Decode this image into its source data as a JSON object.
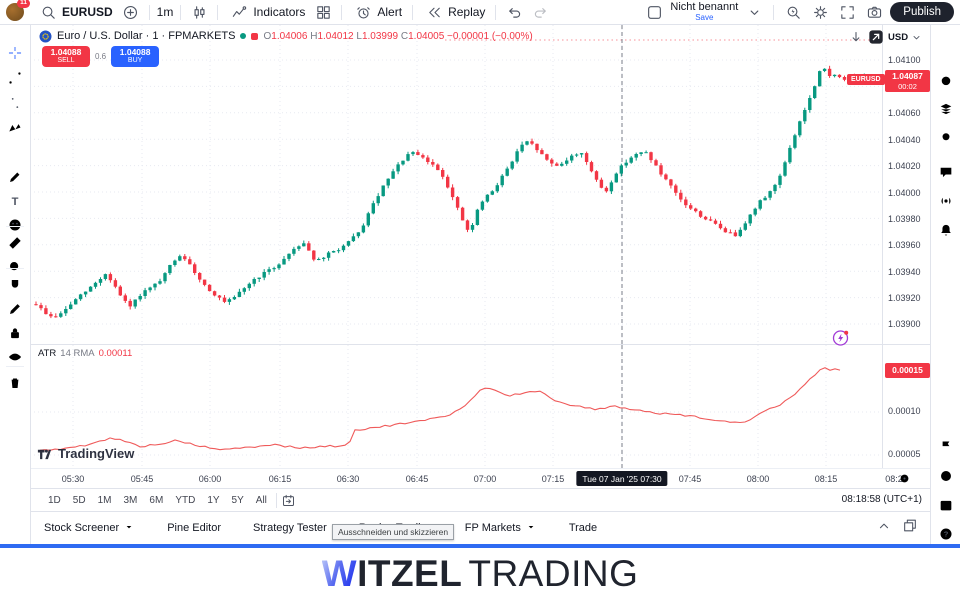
{
  "colors": {
    "up": "#089981",
    "down": "#f23645",
    "accent": "#2962ff",
    "sell": "#f23645",
    "buy": "#2962ff",
    "grid": "#e7eaf1",
    "crosshair": "#7a7e8a",
    "atr_line": "#ef5a5a",
    "badge_dark": "#131722",
    "blue_bar": "#2e6bf2"
  },
  "top_toolbar": {
    "badge": "11",
    "symbol": "EURUSD",
    "interval": "1m",
    "indicators": "Indicators",
    "alert": "Alert",
    "replay": "Replay",
    "layout_name": "Nicht benannt",
    "save": "Save",
    "publish": "Publish",
    "left_icons": [
      "search-icon",
      "plus-circle-icon",
      "candles-icon",
      "indicators-icon",
      "grid-icon",
      "alarm-icon",
      "replay-icon",
      "undo-icon",
      "redo-icon"
    ],
    "right_icons": [
      "layout-box-icon",
      "chevron-down-icon",
      "quick-search-icon",
      "gear-icon",
      "fullscreen-icon",
      "camera-icon"
    ]
  },
  "left_toolbar": {
    "tools": [
      "crosshair-icon",
      "trendline-icon",
      "fib-icon",
      "pattern-icon",
      "forecast-icon",
      "brush-icon",
      "text-icon",
      "emoji-icon",
      "ruler-icon",
      "zoom-in-icon",
      "magnet-icon",
      "pencil-icon",
      "lock-icon",
      "eye-icon",
      "trash-icon"
    ]
  },
  "right_sidebar": {
    "top": [
      "hamburger-icon",
      "alarm-clock-icon",
      "layers-icon",
      "lightbulb-icon",
      "chat-icon",
      "broadcast-icon",
      "bell-icon"
    ],
    "bottom": [
      "flag-icon",
      "target-icon",
      "calendar-icon",
      "help-icon"
    ]
  },
  "legend": {
    "title": "Euro / U.S. Dollar · 1 · FPMARKETS",
    "o_label": "O",
    "o": "1.04006",
    "h_label": "H",
    "h": "1.04012",
    "l_label": "L",
    "l": "1.03999",
    "c_label": "C",
    "c": "1.04005",
    "change": "−0.00001 (−0.00%)"
  },
  "trade": {
    "sell_price": "1.04088",
    "sell_label": "SELL",
    "spread": "0.6",
    "buy_price": "1.04088",
    "buy_label": "BUY"
  },
  "price_axis": {
    "currency": "USD",
    "labels": [
      "1.04100",
      "1.04060",
      "1.04040",
      "1.04020",
      "1.04000",
      "1.03980",
      "1.03960",
      "1.03940",
      "1.03920",
      "1.03900"
    ],
    "last": "1.04087",
    "countdown": "00:02",
    "tag": "EURUSD"
  },
  "atr_pane": {
    "name": "ATR",
    "params": "14 RMA",
    "value": "0.00011",
    "badge": "0.00015",
    "labels": [
      "0.00010",
      "0.00005"
    ]
  },
  "time_axis": {
    "labels": [
      "05:30",
      "05:45",
      "06:00",
      "06:15",
      "06:30",
      "06:45",
      "07:00",
      "07:15",
      "07:45",
      "08:00",
      "08:15",
      "08:2"
    ],
    "selected": "Tue 07 Jan '25   07:30"
  },
  "range_row": {
    "ranges": [
      "1D",
      "5D",
      "1M",
      "3M",
      "6M",
      "YTD",
      "1Y",
      "5Y",
      "All"
    ],
    "clock": "08:18:58 (UTC+1)"
  },
  "tabs": {
    "items": [
      "Stock Screener",
      "Pine Editor",
      "Strategy Tester",
      "Replay Trading",
      "FP Markets",
      "Trade"
    ],
    "tooltip": "Ausschneiden und skizzieren"
  },
  "watermark": "TradingView",
  "footer": {
    "w": "W",
    "itzel": "ITZEL",
    "trading": "TRADING"
  },
  "chart_data": {
    "type": "candlestick",
    "symbol": "EURUSD",
    "interval": "1m",
    "title": "Euro / U.S. Dollar · 1 · FPMARKETS",
    "ohlc_at_cursor": {
      "open": 1.04006,
      "high": 1.04012,
      "low": 1.03999,
      "close": 1.04005,
      "change": -1e-05,
      "change_pct": -0.0
    },
    "last_price": 1.04087,
    "ylim": [
      1.0389,
      1.04115
    ],
    "grid_prices": [
      1.041,
      1.0408,
      1.0406,
      1.0404,
      1.0402,
      1.04,
      1.0398,
      1.0396,
      1.0394,
      1.0392,
      1.039
    ],
    "time_gridlines": [
      "05:30",
      "05:45",
      "06:00",
      "06:15",
      "06:30",
      "06:45",
      "07:00",
      "07:15",
      "07:30",
      "07:45",
      "08:00",
      "08:15"
    ],
    "cursor_time": "Tue 07 Jan '25 07:30",
    "close_path": [
      [
        36,
        1.03915
      ],
      [
        44,
        1.03909
      ],
      [
        52,
        1.03905
      ],
      [
        60,
        1.03907
      ],
      [
        68,
        1.03913
      ],
      [
        78,
        1.0392
      ],
      [
        88,
        1.03926
      ],
      [
        98,
        1.03933
      ],
      [
        106,
        1.03938
      ],
      [
        114,
        1.0393
      ],
      [
        122,
        1.03919
      ],
      [
        130,
        1.03913
      ],
      [
        140,
        1.03922
      ],
      [
        150,
        1.03927
      ],
      [
        160,
        1.03932
      ],
      [
        170,
        1.03944
      ],
      [
        180,
        1.03952
      ],
      [
        188,
        1.03946
      ],
      [
        196,
        1.03938
      ],
      [
        205,
        1.03929
      ],
      [
        215,
        1.03922
      ],
      [
        225,
        1.03916
      ],
      [
        235,
        1.0392
      ],
      [
        245,
        1.03928
      ],
      [
        255,
        1.03934
      ],
      [
        265,
        1.03939
      ],
      [
        275,
        1.03943
      ],
      [
        285,
        1.0395
      ],
      [
        295,
        1.03958
      ],
      [
        305,
        1.03962
      ],
      [
        312,
        1.0395
      ],
      [
        320,
        1.03948
      ],
      [
        330,
        1.03954
      ],
      [
        340,
        1.03957
      ],
      [
        350,
        1.03963
      ],
      [
        360,
        1.0397
      ],
      [
        370,
        1.03986
      ],
      [
        380,
        1.04
      ],
      [
        390,
        1.04012
      ],
      [
        400,
        1.04022
      ],
      [
        410,
        1.0403
      ],
      [
        420,
        1.04027
      ],
      [
        430,
        1.04022
      ],
      [
        440,
        1.04016
      ],
      [
        448,
        1.04004
      ],
      [
        456,
        1.0399
      ],
      [
        464,
        1.03976
      ],
      [
        470,
        1.03968
      ],
      [
        478,
        1.03988
      ],
      [
        486,
        1.03996
      ],
      [
        494,
        1.04002
      ],
      [
        502,
        1.04012
      ],
      [
        510,
        1.0402
      ],
      [
        518,
        1.04032
      ],
      [
        526,
        1.04038
      ],
      [
        534,
        1.04035
      ],
      [
        542,
        1.04028
      ],
      [
        550,
        1.04022
      ],
      [
        558,
        1.0402
      ],
      [
        566,
        1.04024
      ],
      [
        574,
        1.04028
      ],
      [
        582,
        1.0403
      ],
      [
        590,
        1.04018
      ],
      [
        598,
        1.04006
      ],
      [
        606,
        1.04
      ],
      [
        614,
        1.04012
      ],
      [
        622,
        1.0402
      ],
      [
        630,
        1.04026
      ],
      [
        638,
        1.04029
      ],
      [
        646,
        1.0403
      ],
      [
        654,
        1.04022
      ],
      [
        662,
        1.04012
      ],
      [
        670,
        1.04005
      ],
      [
        678,
        1.03996
      ],
      [
        686,
        1.0399
      ],
      [
        694,
        1.03986
      ],
      [
        702,
        1.03981
      ],
      [
        710,
        1.03978
      ],
      [
        718,
        1.03974
      ],
      [
        726,
        1.0397
      ],
      [
        735,
        1.03967
      ],
      [
        743,
        1.03975
      ],
      [
        751,
        1.03983
      ],
      [
        759,
        1.03992
      ],
      [
        767,
        1.03998
      ],
      [
        775,
        1.04005
      ],
      [
        783,
        1.04018
      ],
      [
        791,
        1.04035
      ],
      [
        799,
        1.04052
      ],
      [
        807,
        1.04066
      ],
      [
        815,
        1.0408
      ],
      [
        822,
        1.04096
      ],
      [
        829,
        1.04088
      ],
      [
        836,
        1.0409
      ],
      [
        843,
        1.04083
      ],
      [
        850,
        1.04089
      ],
      [
        857,
        1.04084
      ],
      [
        864,
        1.04088
      ],
      [
        871,
        1.04082
      ],
      [
        879,
        1.04087
      ]
    ],
    "candle_count": 171,
    "indicator": {
      "name": "ATR",
      "length": 14,
      "smoothing": "RMA",
      "value_at_cursor": 0.00011,
      "last_value": 0.00015,
      "ylim": [
        3e-05,
        0.00017
      ],
      "grid_values": [
        0.00015,
        0.0001,
        5e-05
      ],
      "series": [
        [
          40,
          5.5e-05
        ],
        [
          68,
          5.8e-05
        ],
        [
          90,
          6.2e-05
        ],
        [
          110,
          7e-05
        ],
        [
          125,
          6.6e-05
        ],
        [
          140,
          6e-05
        ],
        [
          160,
          6.3e-05
        ],
        [
          178,
          6.7e-05
        ],
        [
          200,
          6e-05
        ],
        [
          225,
          5.6e-05
        ],
        [
          250,
          5.9e-05
        ],
        [
          275,
          6.2e-05
        ],
        [
          300,
          5.8e-05
        ],
        [
          325,
          6e-05
        ],
        [
          348,
          6.1e-05
        ],
        [
          355,
          7.9e-05
        ],
        [
          375,
          8.2e-05
        ],
        [
          400,
          8.6e-05
        ],
        [
          425,
          9e-05
        ],
        [
          450,
          9.7e-05
        ],
        [
          468,
          0.00011
        ],
        [
          482,
          0.000129
        ],
        [
          495,
          0.000125
        ],
        [
          510,
          0.000119
        ],
        [
          525,
          0.000122
        ],
        [
          538,
          0.000125
        ],
        [
          552,
          0.000115
        ],
        [
          565,
          0.00011
        ],
        [
          580,
          0.000106
        ],
        [
          598,
          0.000103
        ],
        [
          612,
          0.000107
        ],
        [
          628,
          0.000104
        ],
        [
          645,
          0.000101
        ],
        [
          660,
          9.8e-05
        ],
        [
          678,
          9.7e-05
        ],
        [
          695,
          9.5e-05
        ],
        [
          712,
          9.1e-05
        ],
        [
          728,
          8.8e-05
        ],
        [
          742,
          8.7e-05
        ],
        [
          752,
          9.3e-05
        ],
        [
          762,
          0.000101
        ],
        [
          772,
          0.000104
        ],
        [
          782,
          0.00011
        ],
        [
          792,
          0.000118
        ],
        [
          802,
          0.000128
        ],
        [
          812,
          0.00014
        ],
        [
          822,
          0.000152
        ],
        [
          830,
          0.000149
        ],
        [
          836,
          0.000151
        ],
        [
          843,
          0.000146
        ]
      ]
    }
  }
}
